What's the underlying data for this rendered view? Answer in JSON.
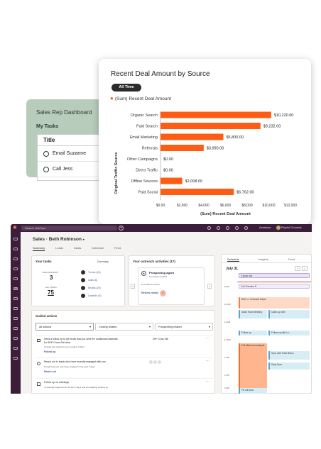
{
  "rep_card": {
    "title": "Sales Rep Dashboard",
    "subtitle": "My Tasks",
    "table_header": "Title",
    "rows": [
      "Email Suzanne",
      "Call Jess"
    ]
  },
  "chart_card": {
    "title": "Recent Deal Amount by Source",
    "filter": "All Time",
    "legend": "(Sum) Recent Deal Amount"
  },
  "chart_data": {
    "type": "bar",
    "orientation": "horizontal",
    "title": "Recent Deal Amount by Source",
    "xlabel": "(Sum) Recent Deal Amount",
    "ylabel": "Original Traffic Source",
    "categories": [
      "Organic Search",
      "Paid Search",
      "Email Marketing",
      "Referrals",
      "Other Campaigns",
      "Direct Traffic",
      "Offline Sources",
      "Paid Social"
    ],
    "values": [
      10220,
      9232,
      5800,
      3990,
      0,
      0,
      2008,
      6762
    ],
    "value_labels": [
      "$10,220.00",
      "$9,232.00",
      "$5,800.00",
      "$3,990.00",
      "$0.00",
      "$0.00",
      "$2,008.00",
      "$6,762.00"
    ],
    "xlim": [
      0,
      12000
    ],
    "xticks": [
      "$0.00",
      "$2,000",
      "$4,000",
      "$6,000",
      "$8,000",
      "$10,000",
      "$12,000"
    ],
    "color": "#ff5c13",
    "grid": false
  },
  "app": {
    "search_placeholder": "Search HubSpot",
    "assistant": "Assistant",
    "account": "Playful Grounds",
    "page_title": "Sales · Beth Robinson",
    "tabs": [
      "Summary",
      "Leads",
      "Deals",
      "Schedule",
      "Feed"
    ],
    "tasks": {
      "title": "Your tasks",
      "due": "Due today",
      "high_priority_label": "HIGH PRIORITY",
      "high_priority_value": "3",
      "all_tasks_label": "ALL TASKS",
      "all_tasks_value": "75",
      "items": [
        "To-dos (42)",
        "Calls (8)",
        "Emails (20)",
        "LinkedIn (5)"
      ]
    },
    "outreach": {
      "title": "Your outreach activities (17)",
      "agent": "Prospecting agent",
      "agent_sub": "5 contacts enrolled",
      "review_meta": "14 emails to review",
      "review_link": "Review emails"
    },
    "guided": {
      "title": "Guided actions",
      "filters": [
        "All actions",
        "Closing related",
        "Prospecting related"
      ],
      "items": [
        {
          "text": "Send a follow up to the email that you sent Re: Additional materials for SHP Cross Sell deal",
          "meta": "Contact has replied to your email in 3 days",
          "link": "Follow up",
          "side": "SHP Cross Sell"
        },
        {
          "text": "Reach out to leads who have recently engaged with you",
          "meta": "5 leads that you own have engaged in the past 2 days",
          "link": "Reach out",
          "side": ""
        },
        {
          "text": "Follow up on meetings",
          "meta": "4 meetings happened in the last 7 days and are awaiting a follow up",
          "link": "",
          "side": ""
        }
      ]
    },
    "schedule": {
      "tabs": [
        "Schedule",
        "Insights",
        "Feed"
      ],
      "date": "July 31",
      "times": [
        "9 AM",
        "10 AM",
        "11 AM",
        "12 PM",
        "1 PM",
        "2 PM",
        "3 PM",
        "4 PM"
      ],
      "events": [
        "2 tasks due",
        "Call Christina R",
        "Beth <> Schwartz Meyer",
        "Sales Team Meeting",
        "Catch-up with",
        "Follow up",
        "Follow up with Lo...",
        "Full afternoon example",
        "Sync with Team Bravo",
        "Daily Sync",
        "Fill out docs"
      ]
    }
  }
}
